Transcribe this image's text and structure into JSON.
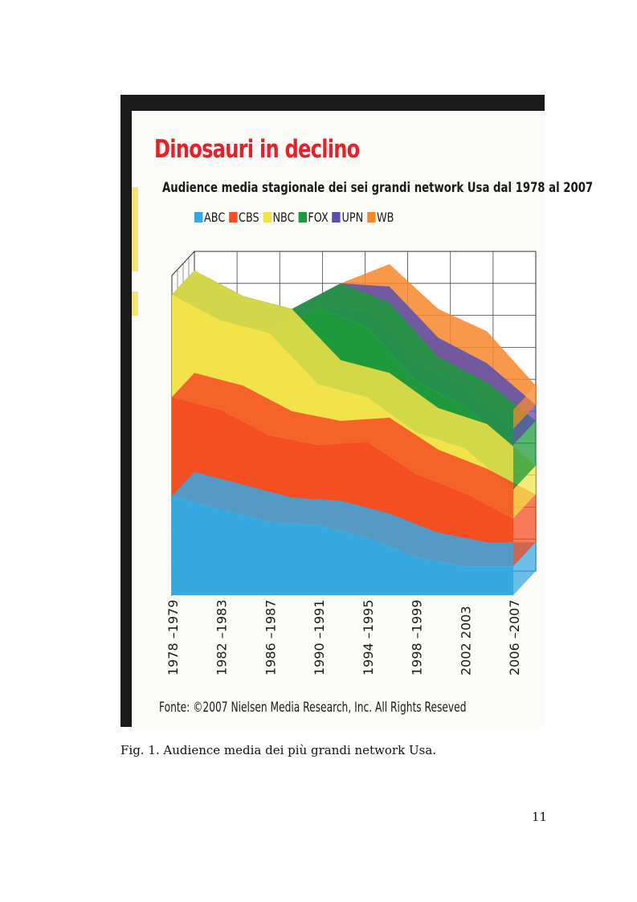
{
  "figure": {
    "caption": "Fig. 1. Audience media dei più grandi network Usa.",
    "page_number": "11",
    "source": "Fonte: ©2007 Nielsen Media Research, Inc. All Rights Resevеd"
  },
  "chart_data": {
    "type": "area",
    "stacked": true,
    "style": "3d",
    "title": "Dinosauri in declino",
    "subtitle": "Audience media stagionale dei sei grandi network Usa dal 1978 al 2007",
    "legend_position": "top",
    "grid": true,
    "categories": [
      "1978 –1979",
      "1982 –1983",
      "1986 –1987",
      "1990 –1991",
      "1994 –1995",
      "1998 –1999",
      "2002 2003",
      "2006 –2007"
    ],
    "ylim": [
      0,
      100
    ],
    "series": [
      {
        "name": "ABC",
        "color": "#38a8e0",
        "values": [
          31,
          27,
          23,
          22,
          18,
          12,
          9,
          9
        ]
      },
      {
        "name": "CBS",
        "color": "#f44e22",
        "values": [
          31,
          31,
          27,
          25,
          30,
          26,
          23,
          15
        ]
      },
      {
        "name": "NBC",
        "color": "#f2e34a",
        "values": [
          32,
          28,
          32,
          19,
          14,
          13,
          14,
          9
        ]
      },
      {
        "name": "FOX",
        "color": "#1e9a3c",
        "values": [
          0,
          0,
          0,
          24,
          22,
          16,
          13,
          14
        ]
      },
      {
        "name": "UPN",
        "color": "#5a4fb0",
        "values": [
          0,
          0,
          0,
          0,
          5,
          6,
          6,
          5
        ]
      },
      {
        "name": "WB",
        "color": "#f6862c",
        "values": [
          0,
          0,
          0,
          0,
          7,
          9,
          10,
          6
        ]
      }
    ]
  }
}
